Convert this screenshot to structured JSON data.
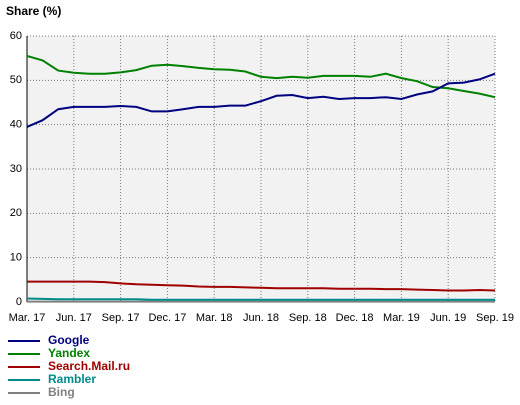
{
  "chart_data": {
    "type": "line",
    "title": "Share (%)",
    "categories": [
      "Mar. 17",
      null,
      null,
      "Jun. 17",
      null,
      null,
      "Sep. 17",
      null,
      null,
      "Dec. 17",
      null,
      null,
      "Mar. 18",
      null,
      null,
      "Jun. 18",
      null,
      null,
      "Sep. 18",
      null,
      null,
      "Dec. 18",
      null,
      null,
      "Mar. 19",
      null,
      null,
      "Jun. 19",
      null,
      null,
      "Sep. 19"
    ],
    "series": [
      {
        "name": "Google",
        "color": "#000080",
        "values": [
          39.5,
          41,
          43.5,
          44,
          44,
          44,
          44.2,
          44,
          43,
          43,
          43.5,
          44,
          44,
          44.3,
          44.3,
          45.3,
          46.5,
          46.7,
          46,
          46.3,
          45.8,
          46,
          46,
          46.2,
          45.8,
          46.8,
          47.5,
          49.3,
          49.5,
          50.2,
          51.5
        ]
      },
      {
        "name": "Yandex",
        "color": "#008000",
        "values": [
          55.5,
          54.5,
          52.2,
          51.7,
          51.5,
          51.5,
          51.8,
          52.3,
          53.3,
          53.5,
          53.2,
          52.8,
          52.5,
          52.4,
          52,
          50.8,
          50.5,
          50.8,
          50.6,
          51,
          51,
          51,
          50.8,
          51.5,
          50.5,
          49.8,
          48.5,
          48.2,
          47.6,
          47,
          46.2
        ]
      },
      {
        "name": "Search.Mail.ru",
        "color": "#a00000",
        "values": [
          4.6,
          4.6,
          4.6,
          4.6,
          4.6,
          4.5,
          4.2,
          4.0,
          3.9,
          3.8,
          3.7,
          3.5,
          3.4,
          3.4,
          3.3,
          3.2,
          3.1,
          3.1,
          3.1,
          3.1,
          3.0,
          3.0,
          3.0,
          2.9,
          2.9,
          2.8,
          2.7,
          2.6,
          2.6,
          2.7,
          2.6
        ]
      },
      {
        "name": "Rambler",
        "color": "#008b8b",
        "values": [
          0.8,
          0.7,
          0.6,
          0.6,
          0.6,
          0.6,
          0.6,
          0.6,
          0.5,
          0.5,
          0.5,
          0.5,
          0.5,
          0.5,
          0.5,
          0.5,
          0.5,
          0.5,
          0.5,
          0.5,
          0.5,
          0.5,
          0.5,
          0.5,
          0.5,
          0.5,
          0.5,
          0.5,
          0.5,
          0.5,
          0.5
        ]
      },
      {
        "name": "Bing",
        "color": "#808080",
        "values": [
          0.1,
          0.1,
          0.1,
          0.1,
          0.1,
          0.1,
          0.1,
          0.1,
          0.1,
          0.1,
          0.1,
          0.1,
          0.1,
          0.1,
          0.1,
          0.1,
          0.1,
          0.1,
          0.1,
          0.1,
          0.1,
          0.1,
          0.1,
          0.1,
          0.1,
          0.1,
          0.1,
          0.1,
          0.1,
          0.1,
          0.1
        ]
      }
    ],
    "ylim": [
      0,
      60
    ],
    "yticks": [
      0,
      10,
      20,
      30,
      40,
      50,
      60
    ],
    "grid": true
  }
}
